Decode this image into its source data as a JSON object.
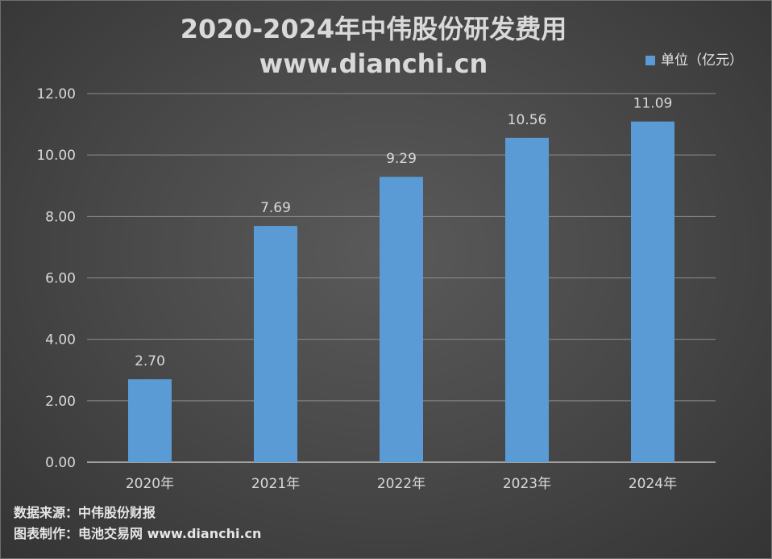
{
  "colors": {
    "bar": "#5b9bd5",
    "gridline": "#8c8c8c",
    "text": "#d9d9d9"
  },
  "chart_data": {
    "type": "bar",
    "title": "2020-2024年中伟股份研发费用",
    "subtitle": "www.dianchi.cn",
    "categories": [
      "2020年",
      "2021年",
      "2022年",
      "2023年",
      "2024年"
    ],
    "series": [
      {
        "name": "单位（亿元）",
        "values": [
          2.7,
          7.69,
          9.29,
          10.56,
          11.09
        ],
        "labels": [
          "2.70",
          "7.69",
          "9.29",
          "10.56",
          "11.09"
        ]
      }
    ],
    "ylim": [
      0,
      12
    ],
    "yticks": [
      "0.00",
      "2.00",
      "4.00",
      "6.00",
      "8.00",
      "10.00",
      "12.00"
    ],
    "grid": true,
    "legend_position": "top-right"
  },
  "footer": {
    "source": "数据来源：中伟股份财报",
    "producer": "图表制作：电池交易网 www.dianchi.cn"
  }
}
